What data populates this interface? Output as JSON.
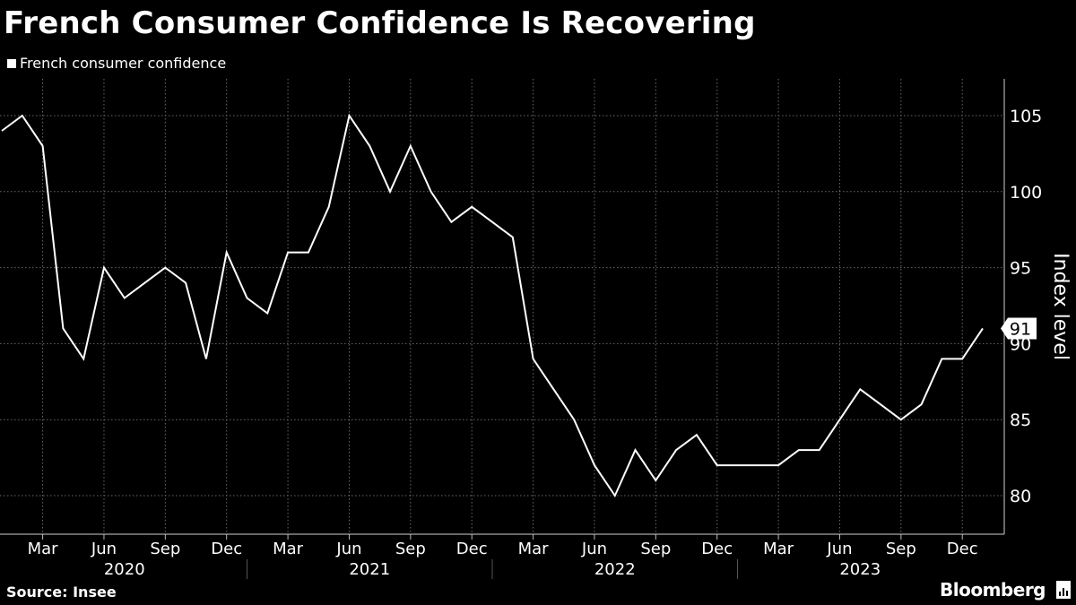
{
  "chart_data": {
    "type": "line",
    "title": "French Consumer Confidence Is Recovering",
    "legend": [
      "French consumer confidence"
    ],
    "legend_position": "top-left",
    "ylabel": "Index level",
    "ylim": [
      78,
      107
    ],
    "yticks": [
      80,
      85,
      90,
      95,
      100,
      105
    ],
    "grid": true,
    "y_axis_side": "right",
    "xlim": [
      "2020-01",
      "2024-01"
    ],
    "month_tick_labels": [
      {
        "date": "2020-03",
        "label": "Mar"
      },
      {
        "date": "2020-06",
        "label": "Jun"
      },
      {
        "date": "2020-09",
        "label": "Sep"
      },
      {
        "date": "2020-12",
        "label": "Dec"
      },
      {
        "date": "2021-03",
        "label": "Mar"
      },
      {
        "date": "2021-06",
        "label": "Jun"
      },
      {
        "date": "2021-09",
        "label": "Sep"
      },
      {
        "date": "2021-12",
        "label": "Dec"
      },
      {
        "date": "2022-03",
        "label": "Mar"
      },
      {
        "date": "2022-06",
        "label": "Jun"
      },
      {
        "date": "2022-09",
        "label": "Sep"
      },
      {
        "date": "2022-12",
        "label": "Dec"
      },
      {
        "date": "2023-03",
        "label": "Mar"
      },
      {
        "date": "2023-06",
        "label": "Jun"
      },
      {
        "date": "2023-09",
        "label": "Sep"
      },
      {
        "date": "2023-12",
        "label": "Dec"
      }
    ],
    "year_labels": [
      "2020",
      "2021",
      "2022",
      "2023"
    ],
    "series": [
      {
        "name": "French consumer confidence",
        "color": "#ffffff",
        "last_value_label": "91",
        "x": [
          "2020-01",
          "2020-02",
          "2020-03",
          "2020-04",
          "2020-05",
          "2020-06",
          "2020-07",
          "2020-08",
          "2020-09",
          "2020-10",
          "2020-11",
          "2020-12",
          "2021-01",
          "2021-02",
          "2021-03",
          "2021-04",
          "2021-05",
          "2021-06",
          "2021-07",
          "2021-08",
          "2021-09",
          "2021-10",
          "2021-11",
          "2021-12",
          "2022-01",
          "2022-02",
          "2022-03",
          "2022-04",
          "2022-05",
          "2022-06",
          "2022-07",
          "2022-08",
          "2022-09",
          "2022-10",
          "2022-11",
          "2022-12",
          "2023-01",
          "2023-02",
          "2023-03",
          "2023-04",
          "2023-05",
          "2023-06",
          "2023-07",
          "2023-08",
          "2023-09",
          "2023-10",
          "2023-11",
          "2023-12",
          "2024-01"
        ],
        "values": [
          104,
          105,
          103,
          91,
          89,
          95,
          93,
          94,
          95,
          94,
          89,
          96,
          93,
          92,
          96,
          96,
          99,
          105,
          103,
          100,
          103,
          100,
          98,
          99,
          98,
          97,
          89,
          87,
          85,
          82,
          80,
          83,
          81,
          83,
          84,
          82,
          82,
          82,
          82,
          83,
          83,
          85,
          87,
          86,
          85,
          86,
          89,
          89,
          91
        ]
      }
    ],
    "source": "Source: Insee",
    "brand": "Bloomberg"
  }
}
